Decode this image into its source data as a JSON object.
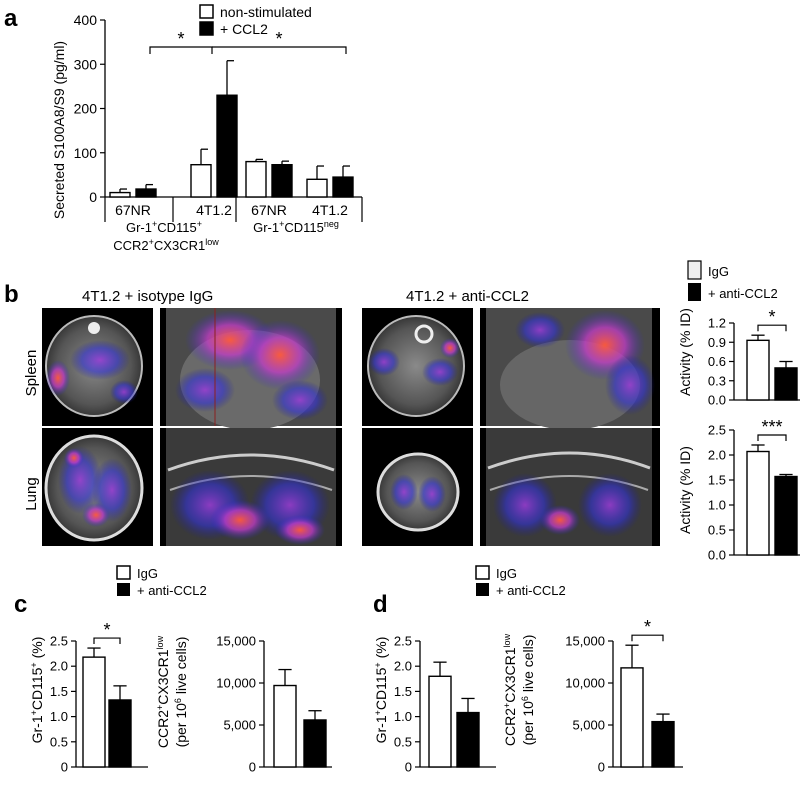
{
  "figure": {
    "panels": {
      "a": {
        "letter": "a"
      },
      "b": {
        "letter": "b",
        "title_left": "4T1.2 + isotype IgG",
        "title_right": "4T1.2 + anti-CCL2",
        "row_labels": [
          "Spleen",
          "Lung"
        ]
      },
      "c": {
        "letter": "c"
      },
      "d": {
        "letter": "d"
      }
    }
  },
  "chart_data": [
    {
      "id": "a",
      "type": "bar",
      "ylabel": "Secreted S100A8/S9 (pg/ml)",
      "ylim": [
        0,
        400
      ],
      "yticks": [
        0,
        100,
        200,
        300,
        400
      ],
      "legend": [
        "non-stimulated",
        "+ CCL2"
      ],
      "categories": [
        "67NR",
        "4T1.2",
        "67NR",
        "4T1.2"
      ],
      "group_labels": [
        "Gr-1⁺CD115⁺ CCR2⁺CX3CR1ˡᵒʷ",
        "Gr-1⁺CD115ⁿᵉᵍ"
      ],
      "series": [
        {
          "name": "non-stimulated",
          "values": [
            10,
            73,
            80,
            40
          ],
          "errors": [
            8,
            35,
            5,
            30
          ]
        },
        {
          "name": "+ CCL2",
          "values": [
            18,
            230,
            73,
            45
          ],
          "errors": [
            10,
            78,
            8,
            25
          ]
        }
      ],
      "significance": [
        "*",
        "*"
      ],
      "colors": {
        "non-stimulated": "#ffffff",
        "+ CCL2": "#000000"
      }
    },
    {
      "id": "b-spleen",
      "type": "bar",
      "ylabel": "Activity (% ID)",
      "ylim": [
        0,
        1.2
      ],
      "yticks": [
        "0.0",
        "0.3",
        "0.6",
        "0.9",
        "1.2"
      ],
      "legend": [
        "IgG",
        "+ anti-CCL2"
      ],
      "categories": [
        "IgG",
        "+ anti-CCL2"
      ],
      "values": [
        0.93,
        0.5
      ],
      "errors": [
        0.08,
        0.1
      ],
      "significance": "*"
    },
    {
      "id": "b-lung",
      "type": "bar",
      "ylabel": "Activity (% ID)",
      "ylim": [
        0,
        2.5
      ],
      "yticks": [
        "0.0",
        "0.5",
        "1.0",
        "1.5",
        "2.0",
        "2.5"
      ],
      "categories": [
        "IgG",
        "+ anti-CCL2"
      ],
      "values": [
        2.07,
        1.57
      ],
      "errors": [
        0.13,
        0.04
      ],
      "significance": "***"
    },
    {
      "id": "c1",
      "type": "bar",
      "ylabel": "Gr-1⁺CD115⁺ (%)",
      "ylim": [
        0,
        2.5
      ],
      "yticks": [
        "0",
        "0.5",
        "1.0",
        "1.5",
        "2.0",
        "2.5"
      ],
      "legend": [
        "IgG",
        "+ anti-CCL2"
      ],
      "categories": [
        "IgG",
        "+ anti-CCL2"
      ],
      "values": [
        2.18,
        1.33
      ],
      "errors": [
        0.18,
        0.28
      ],
      "significance": "*"
    },
    {
      "id": "c2",
      "type": "bar",
      "ylabel": "CCR2⁺CX3CR1ˡᵒʷ (per 10⁶ live cells)",
      "ylim": [
        0,
        15000
      ],
      "yticks": [
        "0",
        "5,000",
        "10,000",
        "15,000"
      ],
      "categories": [
        "IgG",
        "+ anti-CCL2"
      ],
      "values": [
        9700,
        5600
      ],
      "errors": [
        1900,
        1100
      ],
      "significance": ""
    },
    {
      "id": "d1",
      "type": "bar",
      "ylabel": "Gr-1⁺CD115⁺ (%)",
      "ylim": [
        0,
        2.5
      ],
      "yticks": [
        "0",
        "0.5",
        "1.0",
        "1.5",
        "2.0",
        "2.5"
      ],
      "legend": [
        "IgG",
        "+ anti-CCL2"
      ],
      "categories": [
        "IgG",
        "+ anti-CCL2"
      ],
      "values": [
        1.8,
        1.08
      ],
      "errors": [
        0.28,
        0.28
      ],
      "significance": ""
    },
    {
      "id": "d2",
      "type": "bar",
      "ylabel": "CCR2⁺CX3CR1ˡᵒʷ (per 10⁶ live cells)",
      "ylim": [
        0,
        15000
      ],
      "yticks": [
        "0",
        "5,000",
        "10,000",
        "15,000"
      ],
      "categories": [
        "IgG",
        "+ anti-CCL2"
      ],
      "values": [
        11800,
        5400
      ],
      "errors": [
        2700,
        900
      ],
      "significance": "*"
    }
  ]
}
